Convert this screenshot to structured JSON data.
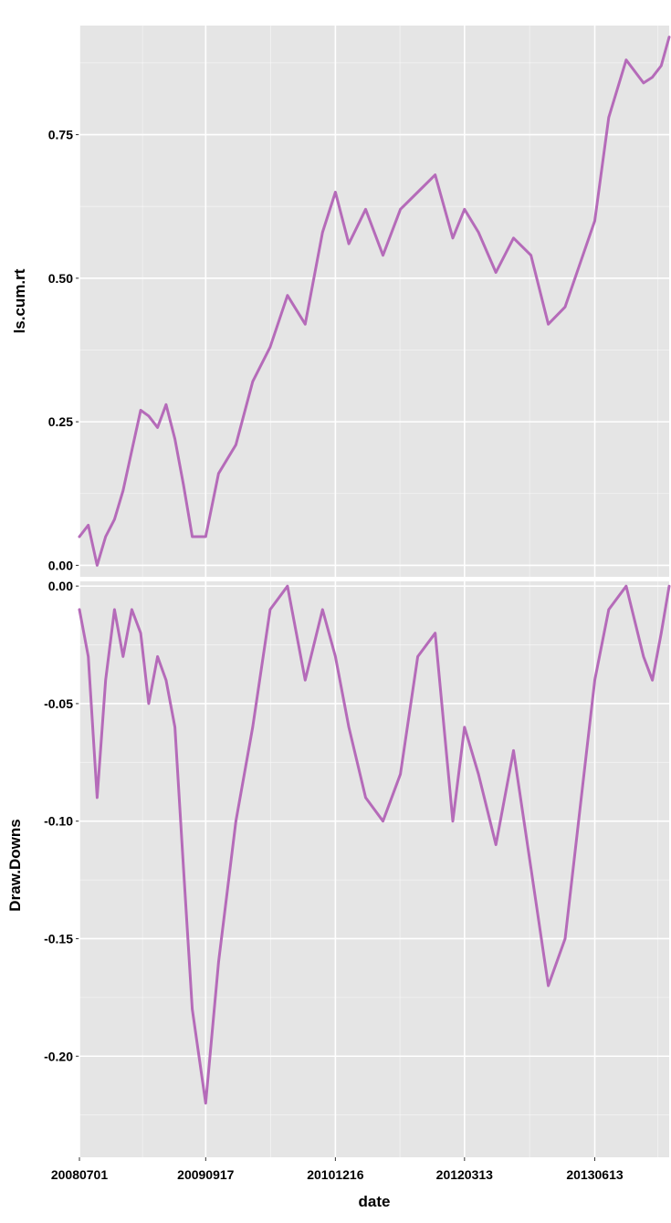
{
  "colors": {
    "panel_background": "#E5E5E5",
    "grid_major": "#FFFFFF",
    "line": "#B56BB9"
  },
  "chart_data": [
    {
      "type": "line",
      "title": "",
      "xlabel": "",
      "ylabel": "ls.cum.rt",
      "grid": true,
      "legend": "none",
      "x_ticks": [
        "20080701",
        "20090917",
        "20101216",
        "20120313",
        "20130613"
      ],
      "x_tick_labels_shown": false,
      "y_ticks": [
        0.0,
        0.25,
        0.5,
        0.75
      ],
      "y_tick_labels": [
        "0.00",
        "0.25",
        "0.50",
        "0.75"
      ],
      "ylim": [
        -0.02,
        0.94
      ],
      "series": [
        {
          "x": [
            "20080701",
            "20080801",
            "20080901",
            "20081001",
            "20081101",
            "20081201",
            "20090101",
            "20090201",
            "20090301",
            "20090401",
            "20090501",
            "20090601",
            "20090701",
            "20090801",
            "20090917",
            "20091101",
            "20100101",
            "20100301",
            "20100501",
            "20100701",
            "20100901",
            "20101101",
            "20101216",
            "20110201",
            "20110401",
            "20110601",
            "20110801",
            "20111001",
            "20111201",
            "20120201",
            "20120313",
            "20120501",
            "20120701",
            "20120901",
            "20121101",
            "20130101",
            "20130301",
            "20130613",
            "20130801",
            "20131001",
            "20131201",
            "20140101",
            "20140201",
            "20140301"
          ],
          "y": [
            0.05,
            0.07,
            0.0,
            0.05,
            0.08,
            0.13,
            0.2,
            0.27,
            0.26,
            0.24,
            0.28,
            0.22,
            0.14,
            0.05,
            0.05,
            0.16,
            0.21,
            0.32,
            0.38,
            0.47,
            0.42,
            0.58,
            0.65,
            0.56,
            0.62,
            0.54,
            0.62,
            0.65,
            0.68,
            0.57,
            0.62,
            0.58,
            0.51,
            0.57,
            0.54,
            0.42,
            0.45,
            0.6,
            0.78,
            0.88,
            0.84,
            0.85,
            0.87,
            0.92
          ]
        }
      ]
    },
    {
      "type": "line",
      "title": "",
      "xlabel": "date",
      "ylabel": "Draw.Downs",
      "grid": true,
      "legend": "none",
      "x_ticks": [
        "20080701",
        "20090917",
        "20101216",
        "20120313",
        "20130613"
      ],
      "x_tick_labels": [
        "20080701",
        "20090917",
        "20101216",
        "20120313",
        "20130613"
      ],
      "y_ticks": [
        0.0,
        -0.05,
        -0.1,
        -0.15,
        -0.2
      ],
      "y_tick_labels": [
        "0.00",
        "-0.05",
        "-0.10",
        "-0.15",
        "-0.20"
      ],
      "ylim": [
        -0.243,
        0.002
      ],
      "series": [
        {
          "x": [
            "20080701",
            "20080801",
            "20080901",
            "20081001",
            "20081101",
            "20081201",
            "20090101",
            "20090201",
            "20090301",
            "20090401",
            "20090501",
            "20090601",
            "20090701",
            "20090801",
            "20090917",
            "20091101",
            "20100101",
            "20100301",
            "20100501",
            "20100701",
            "20100901",
            "20101101",
            "20101216",
            "20110201",
            "20110401",
            "20110601",
            "20110801",
            "20111001",
            "20111201",
            "20120201",
            "20120313",
            "20120501",
            "20120701",
            "20120901",
            "20121101",
            "20130101",
            "20130301",
            "20130613",
            "20130801",
            "20131001",
            "20131201",
            "20140101",
            "20140201",
            "20140301"
          ],
          "y": [
            -0.01,
            -0.03,
            -0.09,
            -0.04,
            -0.01,
            -0.03,
            -0.01,
            -0.02,
            -0.05,
            -0.03,
            -0.04,
            -0.06,
            -0.12,
            -0.18,
            -0.22,
            -0.16,
            -0.1,
            -0.06,
            -0.01,
            0.0,
            -0.04,
            -0.01,
            -0.03,
            -0.06,
            -0.09,
            -0.1,
            -0.08,
            -0.03,
            -0.02,
            -0.1,
            -0.06,
            -0.08,
            -0.11,
            -0.07,
            -0.12,
            -0.17,
            -0.15,
            -0.04,
            -0.01,
            0.0,
            -0.03,
            -0.04,
            -0.02,
            0.0
          ]
        }
      ]
    }
  ]
}
